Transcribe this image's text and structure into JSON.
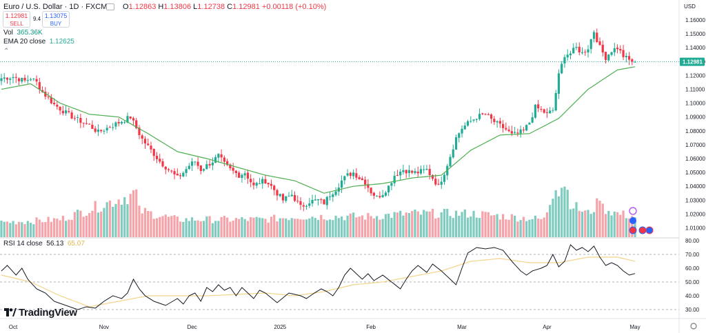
{
  "header": {
    "symbol": "Euro / U.S. Dollar · 1D · FXCM",
    "o_label": "O",
    "o": "1.12863",
    "h_label": "H",
    "h": "1.13806",
    "l_label": "L",
    "l": "1.12738",
    "c_label": "C",
    "c": "1.12981",
    "change": "+0.00118 (+0.10%)",
    "sell_price": "1.12981",
    "sell_label": "SELL",
    "spread": "9.4",
    "buy_price": "1.13075",
    "buy_label": "BUY",
    "vol_label": "Vol",
    "vol_value": "365.36K",
    "ema_label": "EMA 20 close",
    "ema_value": "1.12625",
    "rsi_label": "RSI 14 close",
    "rsi_value": "56.13",
    "rsi_ma_value": "65.07"
  },
  "brand": "TradingView",
  "colors": {
    "up": "#22ab94",
    "down": "#f23645",
    "ema": "#4caf50",
    "vol_up": "#7fcbbf",
    "vol_down": "#f5a3a8",
    "rsi": "#131722",
    "rsi_ma": "#f2d48a",
    "price_line": "#22ab94"
  },
  "chart_data": {
    "type": "candlestick",
    "currency": "USD",
    "last_price": 1.12981,
    "price_axis": {
      "ticks": [
        1.16,
        1.15,
        1.14,
        1.13,
        1.12,
        1.11,
        1.1,
        1.09,
        1.08,
        1.07,
        1.06,
        1.05,
        1.04,
        1.03,
        1.02,
        1.01
      ],
      "tick_labels": [
        "1.16000",
        "1.15000",
        "1.14000",
        "1.13000",
        "1.12000",
        "1.11000",
        "1.10000",
        "1.09000",
        "1.08000",
        "1.07000",
        "1.06000",
        "1.05000",
        "1.04000",
        "1.03000",
        "1.02000",
        "1.01000"
      ]
    },
    "rsi_axis": {
      "ticks": [
        80,
        70,
        60,
        50,
        40,
        30
      ],
      "tick_labels": [
        "80.00",
        "70.00",
        "60.00",
        "50.00",
        "40.00",
        "30.00"
      ],
      "bands": [
        70,
        50,
        30
      ]
    },
    "x_axis": {
      "tick_labels": [
        "Oct",
        "Nov",
        "Dec",
        "2025",
        "Feb",
        "Mar",
        "Apr",
        "May"
      ],
      "tick_index": [
        4,
        35,
        65,
        95,
        126,
        157,
        186,
        216
      ]
    },
    "close_anchors": [
      [
        0,
        1.118
      ],
      [
        4,
        1.119
      ],
      [
        8,
        1.116
      ],
      [
        10,
        1.118
      ],
      [
        12,
        1.115
      ],
      [
        14,
        1.108
      ],
      [
        18,
        1.099
      ],
      [
        22,
        1.093
      ],
      [
        26,
        1.088
      ],
      [
        30,
        1.084
      ],
      [
        33,
        1.079
      ],
      [
        36,
        1.082
      ],
      [
        38,
        1.084
      ],
      [
        42,
        1.088
      ],
      [
        44,
        1.09
      ],
      [
        46,
        1.082
      ],
      [
        48,
        1.074
      ],
      [
        51,
        1.066
      ],
      [
        54,
        1.058
      ],
      [
        57,
        1.052
      ],
      [
        60,
        1.046
      ],
      [
        62,
        1.05
      ],
      [
        64,
        1.055
      ],
      [
        66,
        1.058
      ],
      [
        68,
        1.052
      ],
      [
        70,
        1.055
      ],
      [
        72,
        1.058
      ],
      [
        74,
        1.062
      ],
      [
        76,
        1.056
      ],
      [
        78,
        1.052
      ],
      [
        81,
        1.048
      ],
      [
        83,
        1.05
      ],
      [
        86,
        1.04
      ],
      [
        88,
        1.043
      ],
      [
        90,
        1.044
      ],
      [
        92,
        1.04
      ],
      [
        96,
        1.03
      ],
      [
        99,
        1.034
      ],
      [
        102,
        1.025
      ],
      [
        105,
        1.029
      ],
      [
        108,
        1.03
      ],
      [
        110,
        1.028
      ],
      [
        112,
        1.034
      ],
      [
        114,
        1.038
      ],
      [
        116,
        1.044
      ],
      [
        118,
        1.048
      ],
      [
        120,
        1.05
      ],
      [
        122,
        1.046
      ],
      [
        124,
        1.043
      ],
      [
        126,
        1.036
      ],
      [
        128,
        1.032
      ],
      [
        130,
        1.035
      ],
      [
        132,
        1.04
      ],
      [
        134,
        1.048
      ],
      [
        137,
        1.052
      ],
      [
        140,
        1.05
      ],
      [
        142,
        1.05
      ],
      [
        145,
        1.052
      ],
      [
        147,
        1.046
      ],
      [
        149,
        1.04
      ],
      [
        151,
        1.05
      ],
      [
        153,
        1.062
      ],
      [
        155,
        1.075
      ],
      [
        157,
        1.082
      ],
      [
        160,
        1.087
      ],
      [
        162,
        1.09
      ],
      [
        165,
        1.092
      ],
      [
        167,
        1.088
      ],
      [
        169,
        1.085
      ],
      [
        172,
        1.081
      ],
      [
        174,
        1.077
      ],
      [
        176,
        1.078
      ],
      [
        178,
        1.08
      ],
      [
        180,
        1.086
      ],
      [
        182,
        1.097
      ],
      [
        184,
        1.095
      ],
      [
        186,
        1.092
      ],
      [
        188,
        1.095
      ],
      [
        190,
        1.12
      ],
      [
        192,
        1.135
      ],
      [
        194,
        1.136
      ],
      [
        196,
        1.14
      ],
      [
        198,
        1.136
      ],
      [
        200,
        1.14
      ],
      [
        202,
        1.152
      ],
      [
        204,
        1.14
      ],
      [
        206,
        1.133
      ],
      [
        208,
        1.138
      ],
      [
        210,
        1.14
      ],
      [
        212,
        1.134
      ],
      [
        214,
        1.131
      ],
      [
        216,
        1.1298
      ]
    ],
    "ema20_anchors": [
      [
        0,
        1.11
      ],
      [
        10,
        1.114
      ],
      [
        20,
        1.1
      ],
      [
        30,
        1.092
      ],
      [
        40,
        1.09
      ],
      [
        50,
        1.078
      ],
      [
        60,
        1.065
      ],
      [
        70,
        1.06
      ],
      [
        80,
        1.054
      ],
      [
        90,
        1.048
      ],
      [
        100,
        1.044
      ],
      [
        110,
        1.035
      ],
      [
        120,
        1.04
      ],
      [
        130,
        1.042
      ],
      [
        140,
        1.046
      ],
      [
        150,
        1.048
      ],
      [
        160,
        1.066
      ],
      [
        170,
        1.077
      ],
      [
        180,
        1.078
      ],
      [
        190,
        1.089
      ],
      [
        200,
        1.11
      ],
      [
        210,
        1.124
      ],
      [
        216,
        1.12625
      ]
    ],
    "volume_anchors": [
      [
        0,
        0.25
      ],
      [
        20,
        0.3
      ],
      [
        46,
        0.75
      ],
      [
        47,
        0.45
      ],
      [
        60,
        0.3
      ],
      [
        90,
        0.3
      ],
      [
        100,
        0.35
      ],
      [
        125,
        0.35
      ],
      [
        140,
        0.4
      ],
      [
        160,
        0.4
      ],
      [
        185,
        0.3
      ],
      [
        187,
        0.6
      ],
      [
        189,
        0.95
      ],
      [
        190,
        0.8
      ],
      [
        192,
        0.95
      ],
      [
        194,
        0.6
      ],
      [
        196,
        0.5
      ],
      [
        200,
        0.4
      ],
      [
        203,
        0.55
      ],
      [
        204,
        0.75
      ],
      [
        205,
        0.5
      ],
      [
        210,
        0.4
      ],
      [
        216,
        0.35
      ]
    ],
    "rsi_anchors": [
      [
        0,
        58
      ],
      [
        2,
        62
      ],
      [
        5,
        55
      ],
      [
        7,
        60
      ],
      [
        9,
        52
      ],
      [
        12,
        45
      ],
      [
        15,
        42
      ],
      [
        18,
        36
      ],
      [
        22,
        33
      ],
      [
        26,
        30
      ],
      [
        29,
        32
      ],
      [
        32,
        31
      ],
      [
        35,
        36
      ],
      [
        38,
        40
      ],
      [
        41,
        38
      ],
      [
        43,
        42
      ],
      [
        45,
        52
      ],
      [
        47,
        45
      ],
      [
        49,
        40
      ],
      [
        52,
        36
      ],
      [
        56,
        33
      ],
      [
        60,
        38
      ],
      [
        62,
        34
      ],
      [
        64,
        40
      ],
      [
        66,
        42
      ],
      [
        68,
        36
      ],
      [
        70,
        46
      ],
      [
        72,
        43
      ],
      [
        74,
        48
      ],
      [
        76,
        44
      ],
      [
        78,
        46
      ],
      [
        80,
        40
      ],
      [
        82,
        46
      ],
      [
        84,
        42
      ],
      [
        86,
        38
      ],
      [
        88,
        44
      ],
      [
        90,
        42
      ],
      [
        94,
        35
      ],
      [
        98,
        42
      ],
      [
        102,
        40
      ],
      [
        104,
        38
      ],
      [
        106,
        41
      ],
      [
        109,
        45
      ],
      [
        111,
        43
      ],
      [
        113,
        40
      ],
      [
        115,
        46
      ],
      [
        117,
        55
      ],
      [
        119,
        60
      ],
      [
        121,
        56
      ],
      [
        123,
        52
      ],
      [
        125,
        56
      ],
      [
        127,
        51
      ],
      [
        130,
        55
      ],
      [
        133,
        50
      ],
      [
        136,
        45
      ],
      [
        138,
        52
      ],
      [
        140,
        58
      ],
      [
        142,
        62
      ],
      [
        145,
        57
      ],
      [
        147,
        63
      ],
      [
        150,
        58
      ],
      [
        152,
        54
      ],
      [
        155,
        48
      ],
      [
        157,
        60
      ],
      [
        159,
        71
      ],
      [
        162,
        75
      ],
      [
        165,
        74
      ],
      [
        168,
        75
      ],
      [
        171,
        73
      ],
      [
        174,
        65
      ],
      [
        177,
        58
      ],
      [
        179,
        55
      ],
      [
        181,
        58
      ],
      [
        184,
        60
      ],
      [
        186,
        62
      ],
      [
        188,
        70
      ],
      [
        190,
        61
      ],
      [
        192,
        65
      ],
      [
        194,
        77
      ],
      [
        196,
        73
      ],
      [
        198,
        75
      ],
      [
        200,
        72
      ],
      [
        202,
        76
      ],
      [
        204,
        68
      ],
      [
        206,
        62
      ],
      [
        208,
        64
      ],
      [
        210,
        62
      ],
      [
        212,
        58
      ],
      [
        214,
        55
      ],
      [
        216,
        56.13
      ]
    ],
    "rsi_ma_anchors": [
      [
        0,
        55
      ],
      [
        10,
        50
      ],
      [
        20,
        40
      ],
      [
        30,
        32
      ],
      [
        40,
        36
      ],
      [
        50,
        40
      ],
      [
        60,
        40
      ],
      [
        70,
        40
      ],
      [
        80,
        41
      ],
      [
        90,
        42
      ],
      [
        100,
        40
      ],
      [
        110,
        43
      ],
      [
        120,
        48
      ],
      [
        130,
        50
      ],
      [
        140,
        54
      ],
      [
        150,
        58
      ],
      [
        160,
        65
      ],
      [
        170,
        67
      ],
      [
        180,
        64
      ],
      [
        190,
        64
      ],
      [
        200,
        68
      ],
      [
        210,
        68
      ],
      [
        216,
        65.07
      ]
    ]
  }
}
